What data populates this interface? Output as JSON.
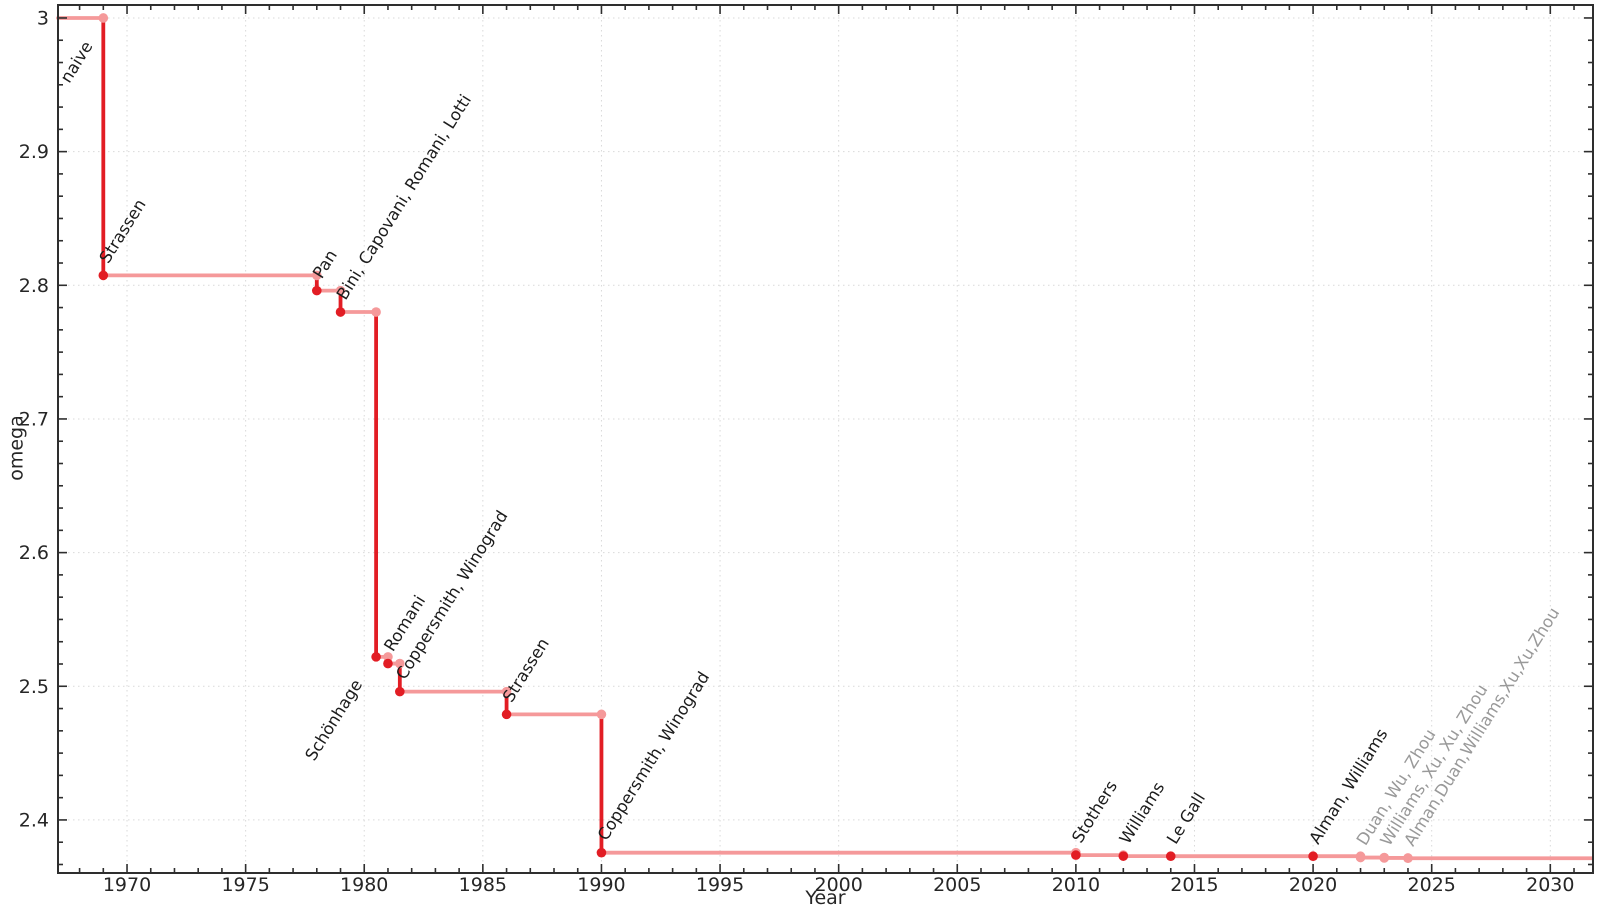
{
  "chart_data": {
    "type": "line",
    "subtype": "step-post",
    "title": "",
    "xlabel": "Year",
    "ylabel": "omega",
    "legend": "none",
    "grid": "dotted-major",
    "x_range": [
      1967.09,
      2031.8
    ],
    "y_range": [
      2.3603,
      3.0097
    ],
    "x_ticks": [
      1970,
      1975,
      1980,
      1985,
      1990,
      1995,
      2000,
      2005,
      2010,
      2015,
      2020,
      2025,
      2030
    ],
    "x_tick_labels": [
      "1970",
      "1975",
      "1980",
      "1985",
      "1990",
      "1995",
      "2000",
      "2005",
      "2010",
      "2015",
      "2020",
      "2025",
      "2030"
    ],
    "x_minor_step_years": 1,
    "y_ticks": [
      2.4,
      2.5,
      2.6,
      2.7,
      2.8,
      2.9,
      3.0
    ],
    "y_tick_labels": [
      "2.4",
      "2.5",
      "2.6",
      "2.7",
      "2.8",
      "2.9",
      "3"
    ],
    "y_minor_divisions": 6,
    "start": {
      "x": 1967.09,
      "omega": 3.0,
      "label": "naive"
    },
    "points": [
      {
        "x": 1969,
        "omega": 2.8074,
        "label": "Strassen",
        "recent": false,
        "label_side": "above"
      },
      {
        "x": 1978,
        "omega": 2.796,
        "label": "Pan",
        "recent": false,
        "label_side": "above"
      },
      {
        "x": 1979,
        "omega": 2.78,
        "label": "Bini, Capovani, Romani, Lotti",
        "recent": false,
        "label_side": "above"
      },
      {
        "x": 1980.5,
        "omega": 2.522,
        "label": "Schönhage",
        "recent": false,
        "label_side": "below"
      },
      {
        "x": 1981,
        "omega": 2.517,
        "label": "Romani",
        "recent": false,
        "label_side": "above"
      },
      {
        "x": 1981.5,
        "omega": 2.496,
        "label": "Coppersmith, Winograd",
        "recent": false,
        "label_side": "above"
      },
      {
        "x": 1986,
        "omega": 2.479,
        "label": "Strassen",
        "recent": false,
        "label_side": "above"
      },
      {
        "x": 1990,
        "omega": 2.3755,
        "label": "Coppersmith, Winograd",
        "recent": false,
        "label_side": "above"
      },
      {
        "x": 2010,
        "omega": 2.3737,
        "label": "Stothers",
        "recent": false,
        "label_side": "above"
      },
      {
        "x": 2012,
        "omega": 2.3729,
        "label": "Williams",
        "recent": false,
        "label_side": "above"
      },
      {
        "x": 2014,
        "omega": 2.372864,
        "label": "Le Gall",
        "recent": false,
        "label_side": "above"
      },
      {
        "x": 2020,
        "omega": 2.37286,
        "label": "Alman, Williams",
        "recent": false,
        "label_side": "above"
      },
      {
        "x": 2022,
        "omega": 2.371866,
        "label": "Duan, Wu, Zhou",
        "recent": true,
        "label_side": "above"
      },
      {
        "x": 2023,
        "omega": 2.371552,
        "label": "Williams, Xu, Xu, Zhou",
        "recent": true,
        "label_side": "above"
      },
      {
        "x": 2024,
        "omega": 2.371339,
        "label": "Alman,Duan,Williams,Xu,Xu,Zhou",
        "recent": true,
        "label_side": "above"
      }
    ],
    "colors": {
      "step_line": "#f5999a",
      "drop_line": "#e21d24",
      "point": "#e21d24",
      "recent_point": "#f5999a",
      "label": "#1c1c1c",
      "recent_label": "#999999",
      "grid": "#d9d9d9",
      "frame": "#2e2e2e",
      "tick_text": "#262626"
    }
  }
}
